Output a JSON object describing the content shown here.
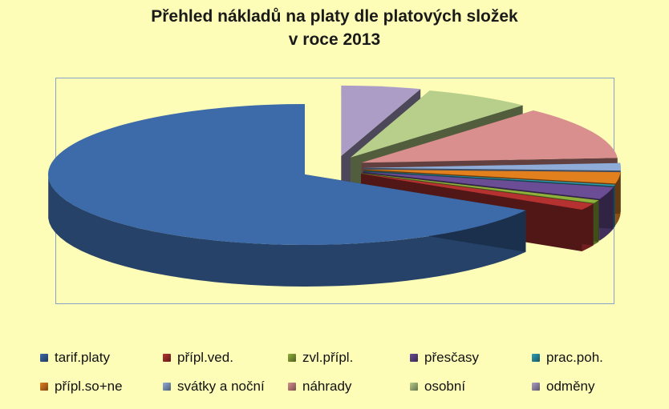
{
  "chart_data": {
    "type": "pie",
    "title_lines": [
      "Přehled nákladů na platy dle platových složek",
      "v roce 2013"
    ],
    "categories": [
      "tarif.platy",
      "příplatek.ved."
    ],
    "labels": [
      "tarif.platy",
      "přípl.ved.",
      "zvl.přípl.",
      "přesčasy",
      "prac.poh.",
      "přípl.so+ne",
      "svátky a noční",
      "náhrady",
      "osobní",
      "odměny"
    ],
    "values": [
      66.5,
      1.5,
      0.7,
      2.8,
      0.3,
      2.6,
      1.7,
      12.2,
      6.7,
      5.0
    ],
    "colors": [
      "#3d6aa8",
      "#b53230",
      "#8fb03a",
      "#6a4d94",
      "#2f9fb6",
      "#e2801e",
      "#8facd8",
      "#d98f8d",
      "#b7cf8a",
      "#ac9dc7"
    ],
    "legend_position": "bottom"
  }
}
